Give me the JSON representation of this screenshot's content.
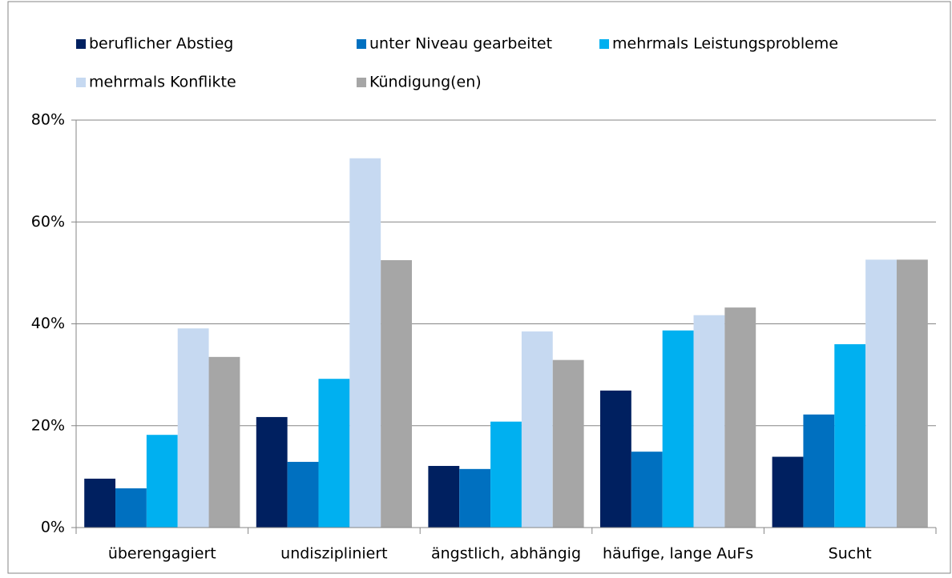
{
  "chart_data": {
    "type": "bar",
    "categories": [
      "überengagiert",
      "undiszipliniert",
      "ängstlich, abhängig",
      "häufige, lange AuFs",
      "Sucht"
    ],
    "series": [
      {
        "name": "beruflicher Abstieg",
        "color": "#002060",
        "values": [
          9.6,
          21.7,
          12.1,
          26.9,
          13.9
        ]
      },
      {
        "name": "unter Niveau gearbeitet",
        "color": "#0070c0",
        "values": [
          7.7,
          12.9,
          11.5,
          14.9,
          22.2
        ]
      },
      {
        "name": "mehrmals Leistungsprobleme",
        "color": "#00b0f0",
        "values": [
          18.2,
          29.2,
          20.8,
          38.7,
          36.0
        ]
      },
      {
        "name": "mehrmals Konflikte",
        "color": "#c6d9f1",
        "values": [
          39.1,
          72.5,
          38.5,
          41.7,
          52.6
        ]
      },
      {
        "name": "Kündigung(en)",
        "color": "#a6a6a6",
        "values": [
          33.5,
          52.5,
          32.9,
          43.2,
          52.6
        ]
      }
    ],
    "ylim": [
      0,
      80
    ],
    "yticks": [
      {
        "value": 0,
        "label": "0%"
      },
      {
        "value": 20,
        "label": "20%"
      },
      {
        "value": 40,
        "label": "40%"
      },
      {
        "value": 60,
        "label": "60%"
      },
      {
        "value": 80,
        "label": "80%"
      }
    ],
    "grid": true,
    "legend": "top"
  }
}
